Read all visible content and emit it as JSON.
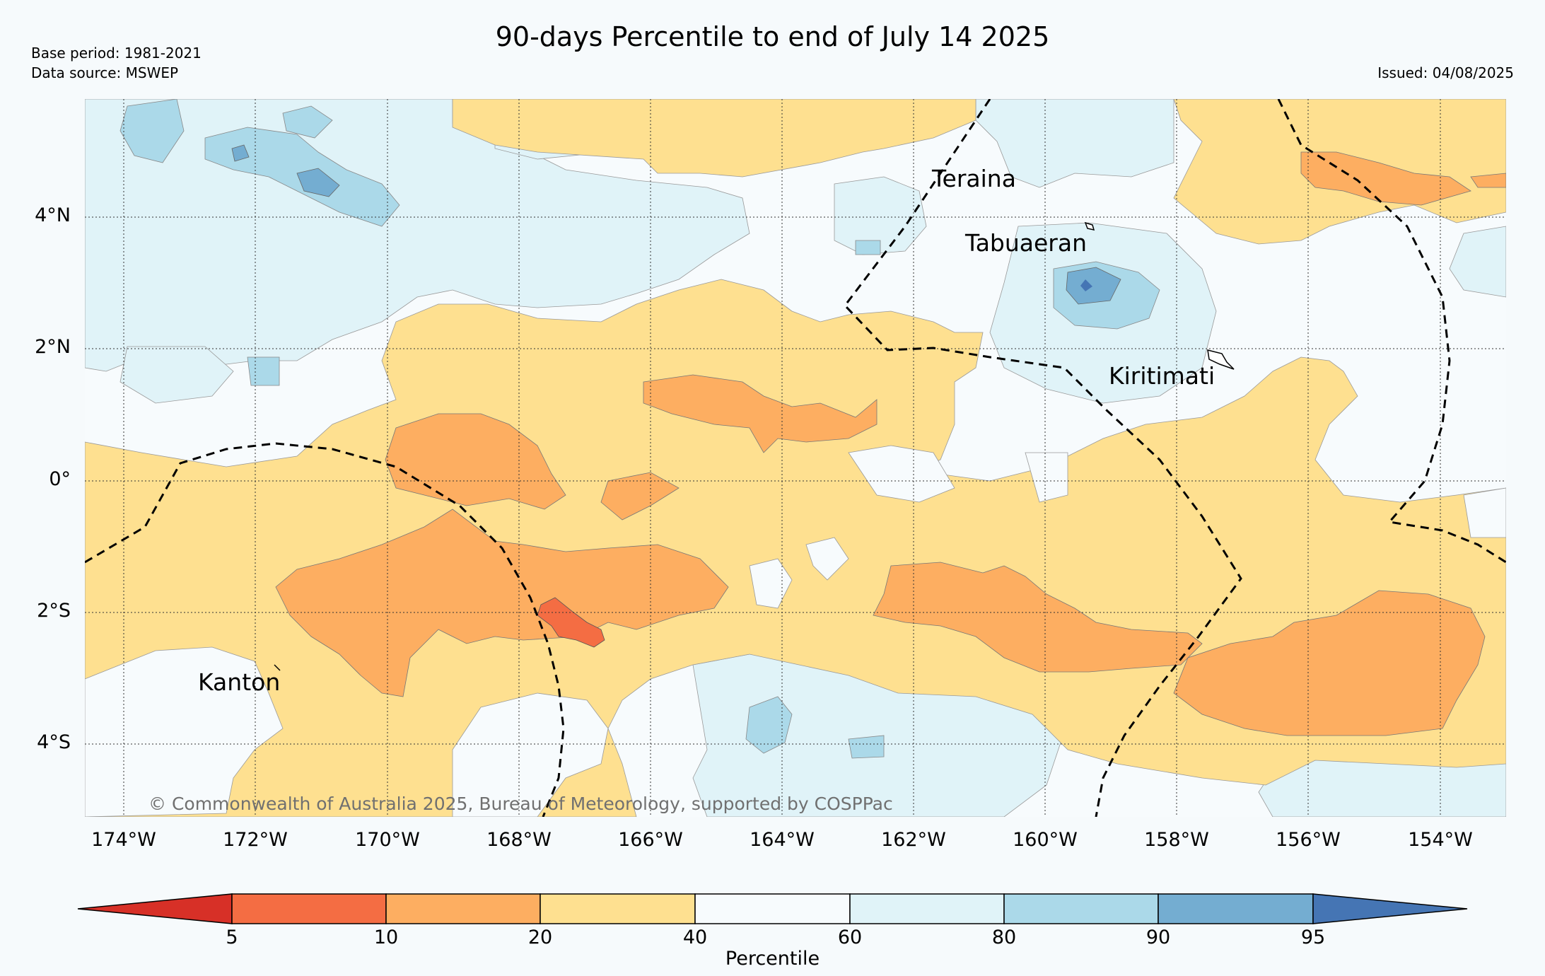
{
  "title": "90-days Percentile to end of July 14 2025",
  "meta": {
    "base_period": "Base period: 1981-2021",
    "data_source": "Data source: MSWEP",
    "issued": "Issued: 04/08/2025"
  },
  "copyright": "© Commonwealth of Australia 2025, Bureau of Meteorology, supported by COSPPac",
  "islands": [
    "Teraina",
    "Tabuaeran",
    "Kiritimati",
    "Kanton"
  ],
  "axes": {
    "lon_ticks": [
      "174°W",
      "172°W",
      "170°W",
      "168°W",
      "166°W",
      "164°W",
      "162°W",
      "160°W",
      "158°W",
      "156°W",
      "154°W"
    ],
    "lat_ticks": [
      "4°N",
      "2°N",
      "0°",
      "2°S",
      "4°S"
    ]
  },
  "colorbar": {
    "label": "Percentile",
    "ticks": [
      "5",
      "10",
      "20",
      "40",
      "60",
      "80",
      "90",
      "95"
    ],
    "colors": [
      "#d73027",
      "#f46d43",
      "#fdae61",
      "#fee090",
      "#f7fbfd",
      "#e0f3f8",
      "#abd9e9",
      "#74add1",
      "#4575b4"
    ]
  },
  "map_colors": {
    "below_5_10": "#f46d43",
    "p10_20": "#fdae61",
    "p20_40": "#fee090",
    "p40_60": "#f7fbfd",
    "p60_80": "#e0f3f8",
    "p80_90": "#abd9e9",
    "p90_95": "#74add1"
  }
}
